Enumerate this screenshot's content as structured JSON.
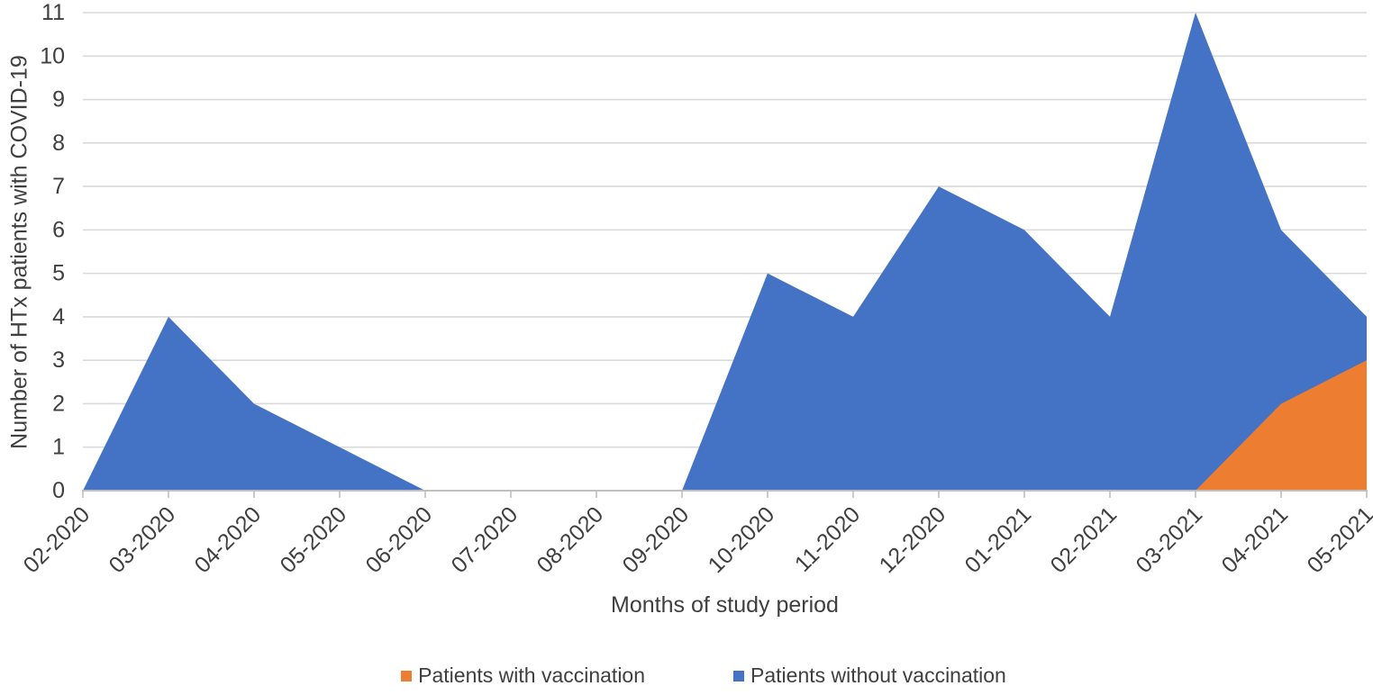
{
  "chart_data": {
    "type": "area",
    "stacked": true,
    "xlabel": "Months of study period",
    "ylabel": "Number of HTx patients with COVID-19",
    "categories": [
      "02-2020",
      "03-2020",
      "04-2020",
      "05-2020",
      "06-2020",
      "07-2020",
      "08-2020",
      "09-2020",
      "10-2020",
      "11-2020",
      "12-2020",
      "01-2021",
      "02-2021",
      "03-2021",
      "04-2021",
      "05-2021"
    ],
    "series": [
      {
        "name": "Patients with vaccination",
        "color": "#ED7D31",
        "values": [
          0,
          0,
          0,
          0,
          0,
          0,
          0,
          0,
          0,
          0,
          0,
          0,
          0,
          0,
          2,
          3
        ]
      },
      {
        "name": "Patients without vaccination",
        "color": "#4472C4",
        "values": [
          0,
          4,
          2,
          1,
          0,
          0,
          0,
          0,
          5,
          4,
          7,
          6,
          4,
          11,
          4,
          1
        ]
      }
    ],
    "totals": [
      0,
      4,
      2,
      1,
      0,
      0,
      0,
      0,
      5,
      4,
      7,
      6,
      4,
      11,
      6,
      4
    ],
    "ylim": [
      0,
      11
    ],
    "yticks": [
      0,
      1,
      2,
      3,
      4,
      5,
      6,
      7,
      8,
      9,
      10,
      11
    ],
    "grid": true,
    "legend_position": "bottom",
    "colors": {
      "gridline": "#D9D9D9",
      "axis_line": "#BFBFBF",
      "tick_text": "#3F3F3F",
      "title_text": "#3F3F3F",
      "background": "#FFFFFF"
    }
  }
}
